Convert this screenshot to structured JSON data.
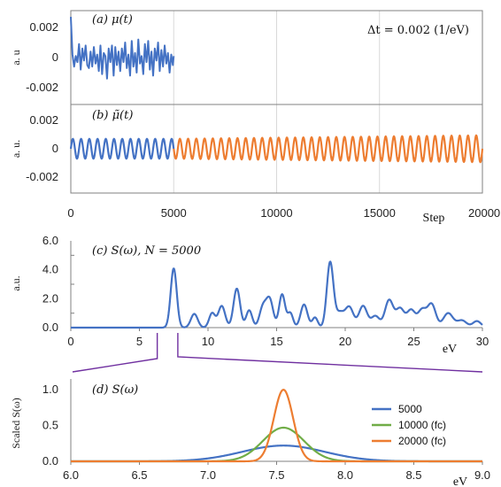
{
  "chart_data": [
    {
      "id": "a",
      "type": "line",
      "panel_label": "(a) μ(t)",
      "annotation": "Δt = 0.002 (1/eV)",
      "ylabel": "a. u",
      "xlim": [
        0,
        20000
      ],
      "ylim": [
        -0.003,
        0.003
      ],
      "y_ticks": [
        "0.002",
        "0",
        "-0.002"
      ],
      "y_tick_values": [
        0.002,
        0,
        -0.002
      ],
      "series": [
        {
          "name": "",
          "color": "#4472c4",
          "x": [
            0,
            80,
            160,
            240,
            320,
            400,
            480,
            560,
            640,
            720,
            800,
            880,
            960,
            1040,
            1120,
            1200,
            1280,
            1360,
            1440,
            1520,
            1600,
            1680,
            1760,
            1840,
            1920,
            2000,
            2080,
            2160,
            2240,
            2320,
            2400,
            2480,
            2560,
            2640,
            2720,
            2800,
            2880,
            2960,
            3040,
            3120,
            3200,
            3280,
            3360,
            3440,
            3520,
            3600,
            3680,
            3760,
            3840,
            3920,
            4000,
            4080,
            4160,
            4240,
            4320,
            4400,
            4480,
            4560,
            4640,
            4720,
            4800,
            4880,
            4960,
            5000
          ],
          "y": [
            0.0027,
            0.0002,
            -0.0006,
            0.0001,
            -0.0003,
            0.0009,
            -0.0008,
            0.0006,
            -0.0002,
            0.0008,
            -0.0005,
            -0.0007,
            0.0004,
            -0.0006,
            0.0007,
            -0.0004,
            0.0002,
            -0.0009,
            0.0008,
            -0.0011,
            0.0003,
            0.0001,
            -0.0014,
            0.0006,
            -0.0003,
            0.0008,
            -0.0012,
            0.0007,
            -0.0005,
            0.0004,
            -0.0009,
            0.0006,
            -0.0003,
            0.001,
            -0.0007,
            0.0002,
            -0.0012,
            0.0011,
            -0.0006,
            0.0003,
            -0.001,
            0.0012,
            -0.0004,
            0.0001,
            -0.0011,
            0.0009,
            -0.0003,
            0.0011,
            -0.0008,
            0.0004,
            -0.0012,
            0.0006,
            -0.0002,
            0.001,
            -0.0009,
            0.0005,
            -0.0006,
            0.0008,
            -0.0004,
            0.0003,
            -0.001,
            0.0002,
            -0.0005,
            0.0001
          ]
        }
      ]
    },
    {
      "id": "b",
      "type": "line",
      "panel_label": "(b) μ̃(t)",
      "ylabel": "a. u.",
      "xlabel": "Step",
      "xlim": [
        0,
        20000
      ],
      "ylim": [
        -0.003,
        0.003
      ],
      "x_ticks": [
        "0",
        "5000",
        "10000",
        "15000",
        "20000"
      ],
      "x_tick_values": [
        0,
        5000,
        10000,
        15000,
        20000
      ],
      "y_ticks": [
        "0.002",
        "0",
        "-0.002"
      ],
      "y_tick_values": [
        0.002,
        0,
        -0.002
      ],
      "oscillation_period": 400,
      "series": [
        {
          "name": "",
          "color": "#4472c4",
          "x_range": [
            0,
            5000
          ],
          "amplitude": [
            0.0007,
            0.0007
          ]
        },
        {
          "name": "",
          "color": "#ed7d31",
          "x_range": [
            5000,
            20000
          ],
          "amplitude": [
            0.0007,
            0.00095
          ]
        }
      ]
    },
    {
      "id": "c",
      "type": "line",
      "panel_label": "(c) S(ω), N = 5000",
      "ylabel": "a.u.",
      "xlabel": "eV",
      "xlim": [
        0,
        30
      ],
      "ylim": [
        0,
        6
      ],
      "x_ticks": [
        "0",
        "5",
        "10",
        "15",
        "20",
        "25",
        "30"
      ],
      "x_tick_values": [
        0,
        5,
        10,
        15,
        20,
        25,
        30
      ],
      "y_ticks": [
        "6.0",
        "4.0",
        "2.0",
        "0.0"
      ],
      "y_tick_values": [
        6,
        4,
        2,
        0
      ],
      "series": [
        {
          "name": "",
          "color": "#4472c4",
          "peaks": [
            [
              7.5,
              4.1,
              0.22
            ],
            [
              9.0,
              0.95,
              0.25
            ],
            [
              10.3,
              1.0,
              0.22
            ],
            [
              11.0,
              1.5,
              0.25
            ],
            [
              12.1,
              2.7,
              0.24
            ],
            [
              13.0,
              1.2,
              0.22
            ],
            [
              14.0,
              1.4,
              0.25
            ],
            [
              14.5,
              1.9,
              0.25
            ],
            [
              15.4,
              2.3,
              0.22
            ],
            [
              16.0,
              1.0,
              0.2
            ],
            [
              17.0,
              1.6,
              0.25
            ],
            [
              17.8,
              0.7,
              0.2
            ],
            [
              18.9,
              4.5,
              0.24
            ],
            [
              19.6,
              1.0,
              0.3
            ],
            [
              20.3,
              1.4,
              0.3
            ],
            [
              21.3,
              1.5,
              0.3
            ],
            [
              22.2,
              0.8,
              0.3
            ],
            [
              23.2,
              1.9,
              0.3
            ],
            [
              24.0,
              1.3,
              0.3
            ],
            [
              24.8,
              1.2,
              0.3
            ],
            [
              25.6,
              1.2,
              0.3
            ],
            [
              26.3,
              1.6,
              0.3
            ],
            [
              27.5,
              1.0,
              0.35
            ],
            [
              28.5,
              0.5,
              0.35
            ],
            [
              29.6,
              0.45,
              0.3
            ]
          ]
        }
      ]
    },
    {
      "id": "d",
      "type": "line",
      "panel_label": "(d) S(ω)",
      "ylabel": "Scaled S(ω)",
      "xlabel": "eV",
      "xlim": [
        6.0,
        9.0
      ],
      "ylim": [
        0,
        1.15
      ],
      "zoom_from_panel_c": [
        7.5,
        9.0
      ],
      "x_ticks": [
        "6.0",
        "6.5",
        "7.0",
        "7.5",
        "8.0",
        "8.5",
        "9.0"
      ],
      "x_tick_values": [
        6.0,
        6.5,
        7.0,
        7.5,
        8.0,
        8.5,
        9.0
      ],
      "y_ticks": [
        "1.0",
        "0.5",
        "0.0"
      ],
      "y_tick_values": [
        1.0,
        0.5,
        0.0
      ],
      "legend_position": "right",
      "series": [
        {
          "name": "5000",
          "color": "#4472c4",
          "center": 7.55,
          "height": 0.22,
          "width": 0.3
        },
        {
          "name": "10000 (fc)",
          "color": "#70ad47",
          "center": 7.55,
          "height": 0.47,
          "width": 0.15
        },
        {
          "name": "20000 (fc)",
          "color": "#ed7d31",
          "center": 7.55,
          "height": 1.0,
          "width": 0.07
        }
      ]
    }
  ],
  "colors": {
    "blue": "#4472c4",
    "orange": "#ed7d31",
    "green": "#70ad47",
    "purple": "#7030a0",
    "grid": "#d9d9d9"
  }
}
